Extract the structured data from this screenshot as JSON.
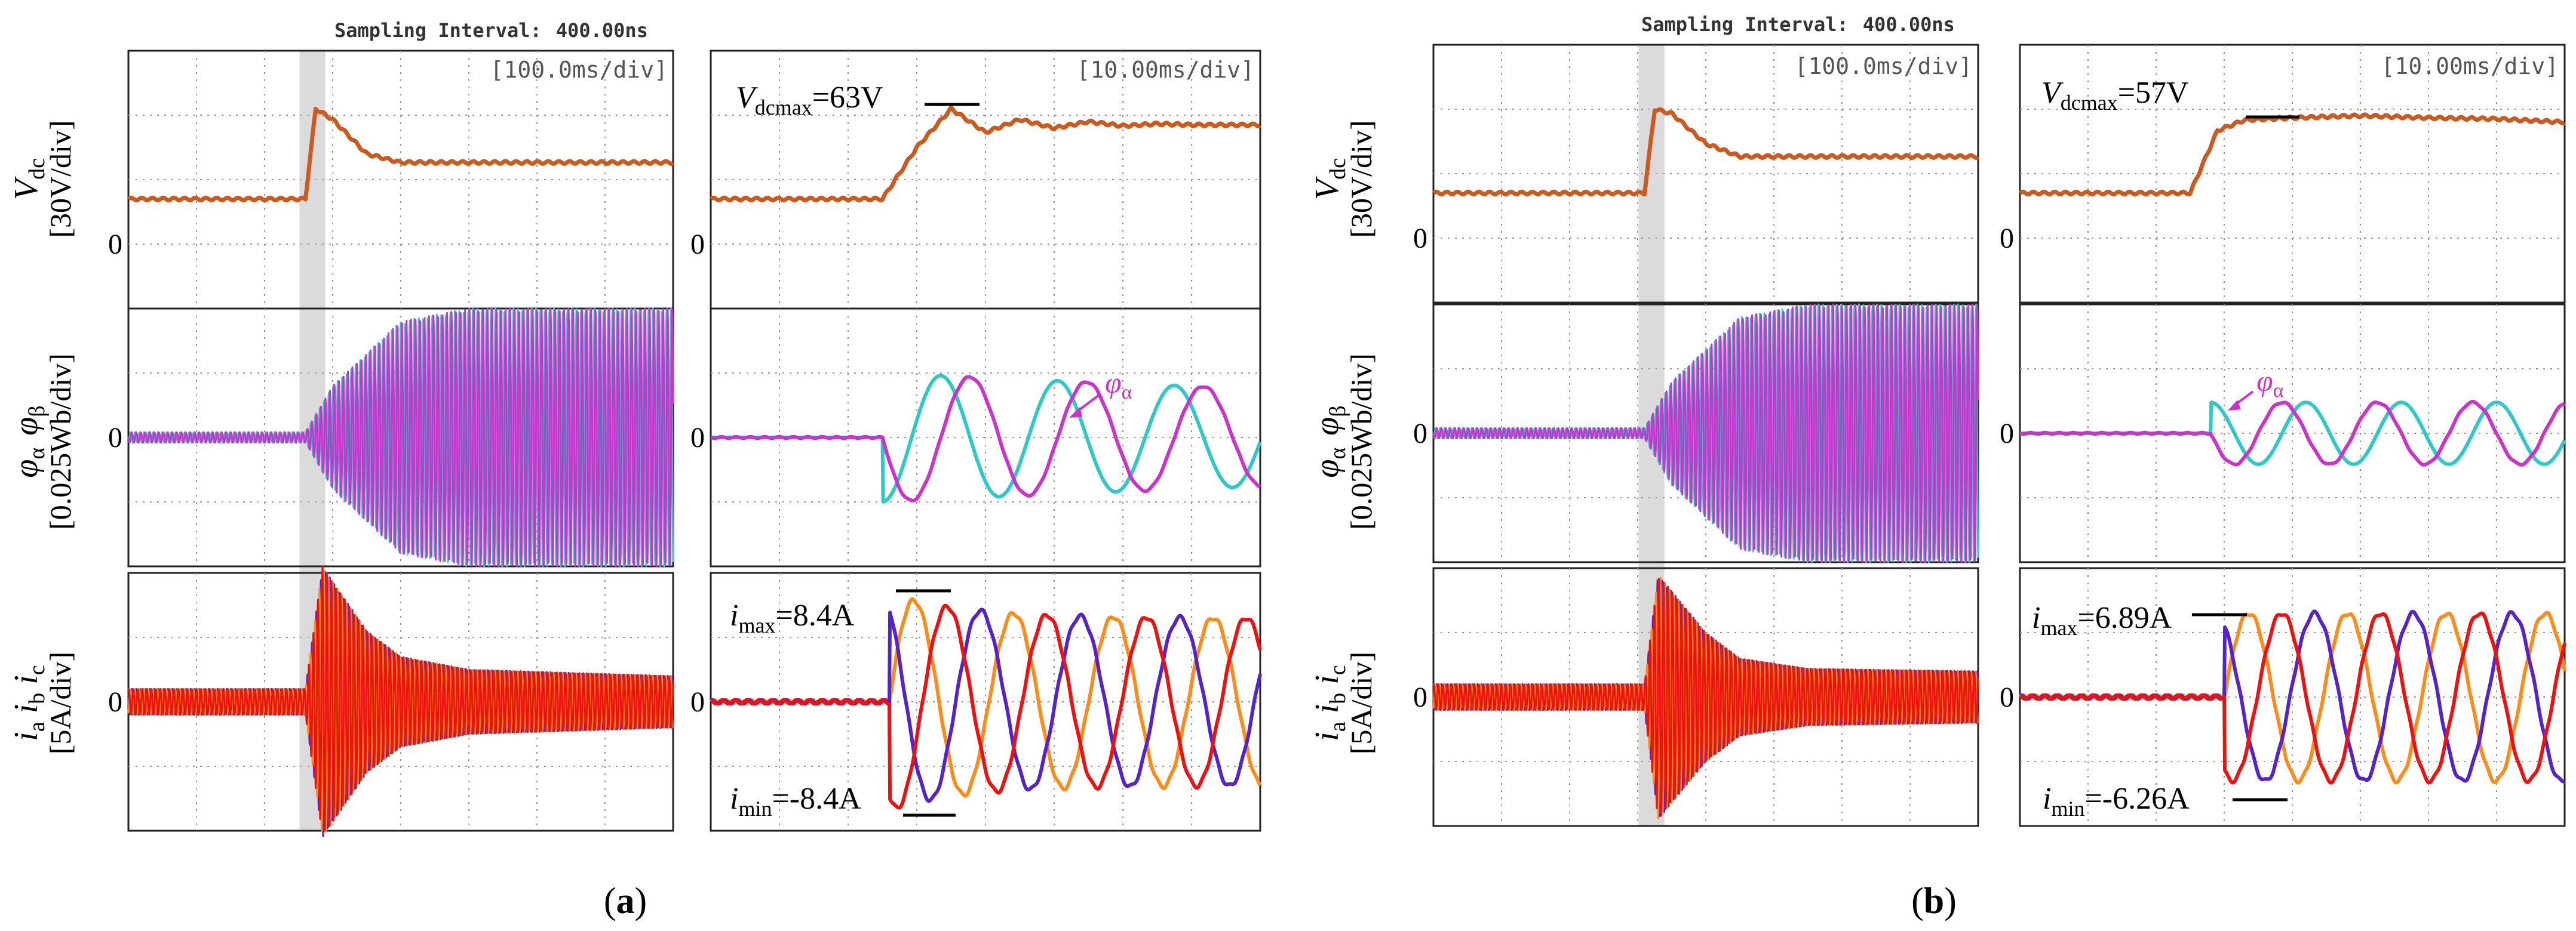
{
  "colors": {
    "grid": "#9a9a9a",
    "frame": "#222222",
    "vdc": "#cc5a1e",
    "phi_alpha": "#cc33cc",
    "phi_beta": "#2ec8c8",
    "ia": "#ff8c1a",
    "ib": "#5522cc",
    "ic": "#ee1111",
    "highlight": "#bdbdbd"
  },
  "header": {
    "sampling_label": "Sampling Interval:",
    "sampling_value": "400.00ns"
  },
  "axis_labels": {
    "vdc_name": "V",
    "vdc_sub": "dc",
    "vdc_scale": "[30V/div]",
    "phi_name_a": "φ",
    "phi_sub_a": "α",
    "phi_name_b": "φ",
    "phi_sub_b": "β",
    "phi_scale": "[0.025Wb/div]",
    "i_a": "i",
    "i_a_sub": "a",
    "i_b": "i",
    "i_b_sub": "b",
    "i_c": "i",
    "i_c_sub": "c",
    "i_scale": "[5A/div]",
    "zero": "0"
  },
  "panels": [
    {
      "caption": "a",
      "overview_timebase": "[100.0ms/div]",
      "zoom_timebase": "[10.00ms/div]",
      "vdc_annotation": {
        "name": "V",
        "sub": "dcmax",
        "value": "=63V"
      },
      "phi_annotation": {
        "name": "φ",
        "sub": "α"
      },
      "imax_annotation": {
        "name": "i",
        "sub": "max",
        "value": "=8.4A"
      },
      "imin_annotation": {
        "name": "i",
        "sub": "min",
        "value": "=-8.4A"
      }
    },
    {
      "caption": "b",
      "overview_timebase": "[100.0ms/div]",
      "zoom_timebase": "[10.00ms/div]",
      "vdc_annotation": {
        "name": "V",
        "sub": "dcmax",
        "value": "=57V"
      },
      "phi_annotation": {
        "name": "φ",
        "sub": "α"
      },
      "imax_annotation": {
        "name": "i",
        "sub": "max",
        "value": "=6.89A"
      },
      "imin_annotation": {
        "name": "i",
        "sub": "min",
        "value": "=-6.26A"
      }
    }
  ],
  "chart_data": [
    {
      "type": "line",
      "panel": "a",
      "view": "overview",
      "x_unit": "ms",
      "x_div": 100,
      "x_range_div": [
        0,
        8
      ],
      "grid": true,
      "series": [
        {
          "channel": "Vdc",
          "unit": "V",
          "scale_per_div": 30,
          "shape": "step from 21 V at 2.6 div, overshoot to 63 V, settle ~38 V",
          "x": [
            0,
            2.6,
            2.75,
            3.0,
            3.5,
            4.0,
            8.0
          ],
          "y": [
            21,
            21,
            63,
            58,
            42,
            38,
            38
          ]
        },
        {
          "channel": "phi_alpha/phi_beta",
          "unit": "Wb",
          "scale_per_div": 0.025,
          "shape": "oscillation envelope",
          "x": [
            0,
            2.6,
            3.0,
            4.0,
            5.0,
            8.0
          ],
          "y_amp": [
            0.002,
            0.002,
            0.02,
            0.045,
            0.05,
            0.05
          ]
        },
        {
          "channel": "ia/ib/ic",
          "unit": "A",
          "scale_per_div": 5,
          "shape": "oscillation envelope",
          "x": [
            0,
            2.6,
            2.85,
            3.5,
            4.0,
            5.0,
            8.0
          ],
          "y_amp": [
            1.0,
            1.0,
            10.5,
            5.5,
            3.5,
            2.5,
            2.0
          ]
        }
      ]
    },
    {
      "type": "line",
      "panel": "a",
      "view": "zoom",
      "x_unit": "ms",
      "x_div": 10,
      "x_range_div": [
        0,
        8
      ],
      "grid": true,
      "series": [
        {
          "channel": "Vdc",
          "unit": "V",
          "scale_per_div": 30,
          "x": [
            0,
            2.5,
            3.0,
            3.5,
            4.0,
            4.5,
            5.0,
            5.5,
            6.0,
            6.5,
            7.0,
            8.0
          ],
          "y": [
            21,
            21,
            45,
            63,
            52,
            58,
            54,
            57,
            55,
            56,
            55.5,
            55.5
          ]
        },
        {
          "channel": "phi_alpha",
          "unit": "Wb",
          "scale_per_div": 0.025,
          "pattern": "decaying sine",
          "amplitude": 0.025,
          "period_div": 1.7
        },
        {
          "channel": "phi_beta",
          "unit": "Wb",
          "scale_per_div": 0.025,
          "pattern": "decaying sine (phase-shifted)",
          "amplitude": 0.025,
          "period_div": 1.7
        },
        {
          "channel": "ia/ib/ic",
          "unit": "A",
          "scale_per_div": 5,
          "pattern": "three-phase sine, 120° apart",
          "imax": 8.4,
          "imin": -8.4,
          "steady_amplitude": 6.5
        }
      ]
    },
    {
      "type": "line",
      "panel": "b",
      "view": "overview",
      "x_unit": "ms",
      "x_div": 100,
      "x_range_div": [
        0,
        8
      ],
      "grid": true,
      "series": [
        {
          "channel": "Vdc",
          "unit": "V",
          "scale_per_div": 30,
          "x": [
            0,
            3.1,
            3.25,
            3.5,
            4.0,
            4.5,
            8.0
          ],
          "y": [
            21,
            21,
            60,
            58,
            44,
            38,
            38
          ]
        },
        {
          "channel": "phi_alpha/phi_beta",
          "unit": "Wb",
          "scale_per_div": 0.025,
          "shape": "oscillation envelope",
          "x": [
            0,
            3.1,
            3.5,
            4.5,
            5.5,
            8.0
          ],
          "y_amp": [
            0.002,
            0.002,
            0.02,
            0.045,
            0.05,
            0.05
          ]
        },
        {
          "channel": "ia/ib/ic",
          "unit": "A",
          "scale_per_div": 5,
          "shape": "oscillation envelope",
          "x": [
            0,
            3.1,
            3.3,
            4.0,
            4.5,
            5.5,
            8.0
          ],
          "y_amp": [
            1.0,
            1.0,
            9.5,
            5.0,
            3.0,
            2.2,
            2.0
          ]
        }
      ]
    },
    {
      "type": "line",
      "panel": "b",
      "view": "zoom",
      "x_unit": "ms",
      "x_div": 10,
      "x_range_div": [
        0,
        8
      ],
      "grid": true,
      "series": [
        {
          "channel": "Vdc",
          "unit": "V",
          "scale_per_div": 30,
          "x": [
            0,
            2.5,
            2.9,
            3.3,
            4.0,
            5.0,
            6.0,
            7.0,
            8.0
          ],
          "y": [
            21,
            21,
            50,
            55,
            56,
            57,
            56,
            55.5,
            54
          ]
        },
        {
          "channel": "phi_alpha",
          "unit": "Wb",
          "scale_per_div": 0.025,
          "pattern": "sine",
          "amplitude": 0.012,
          "period_div": 1.4
        },
        {
          "channel": "phi_beta",
          "unit": "Wb",
          "scale_per_div": 0.025,
          "pattern": "sine (phase-shifted)",
          "amplitude": 0.012,
          "period_div": 1.4
        },
        {
          "channel": "ia/ib/ic",
          "unit": "A",
          "scale_per_div": 5,
          "pattern": "three-phase sine, 120° apart",
          "imax": 6.89,
          "imin": -6.26,
          "steady_amplitude": 6.5
        }
      ]
    }
  ]
}
